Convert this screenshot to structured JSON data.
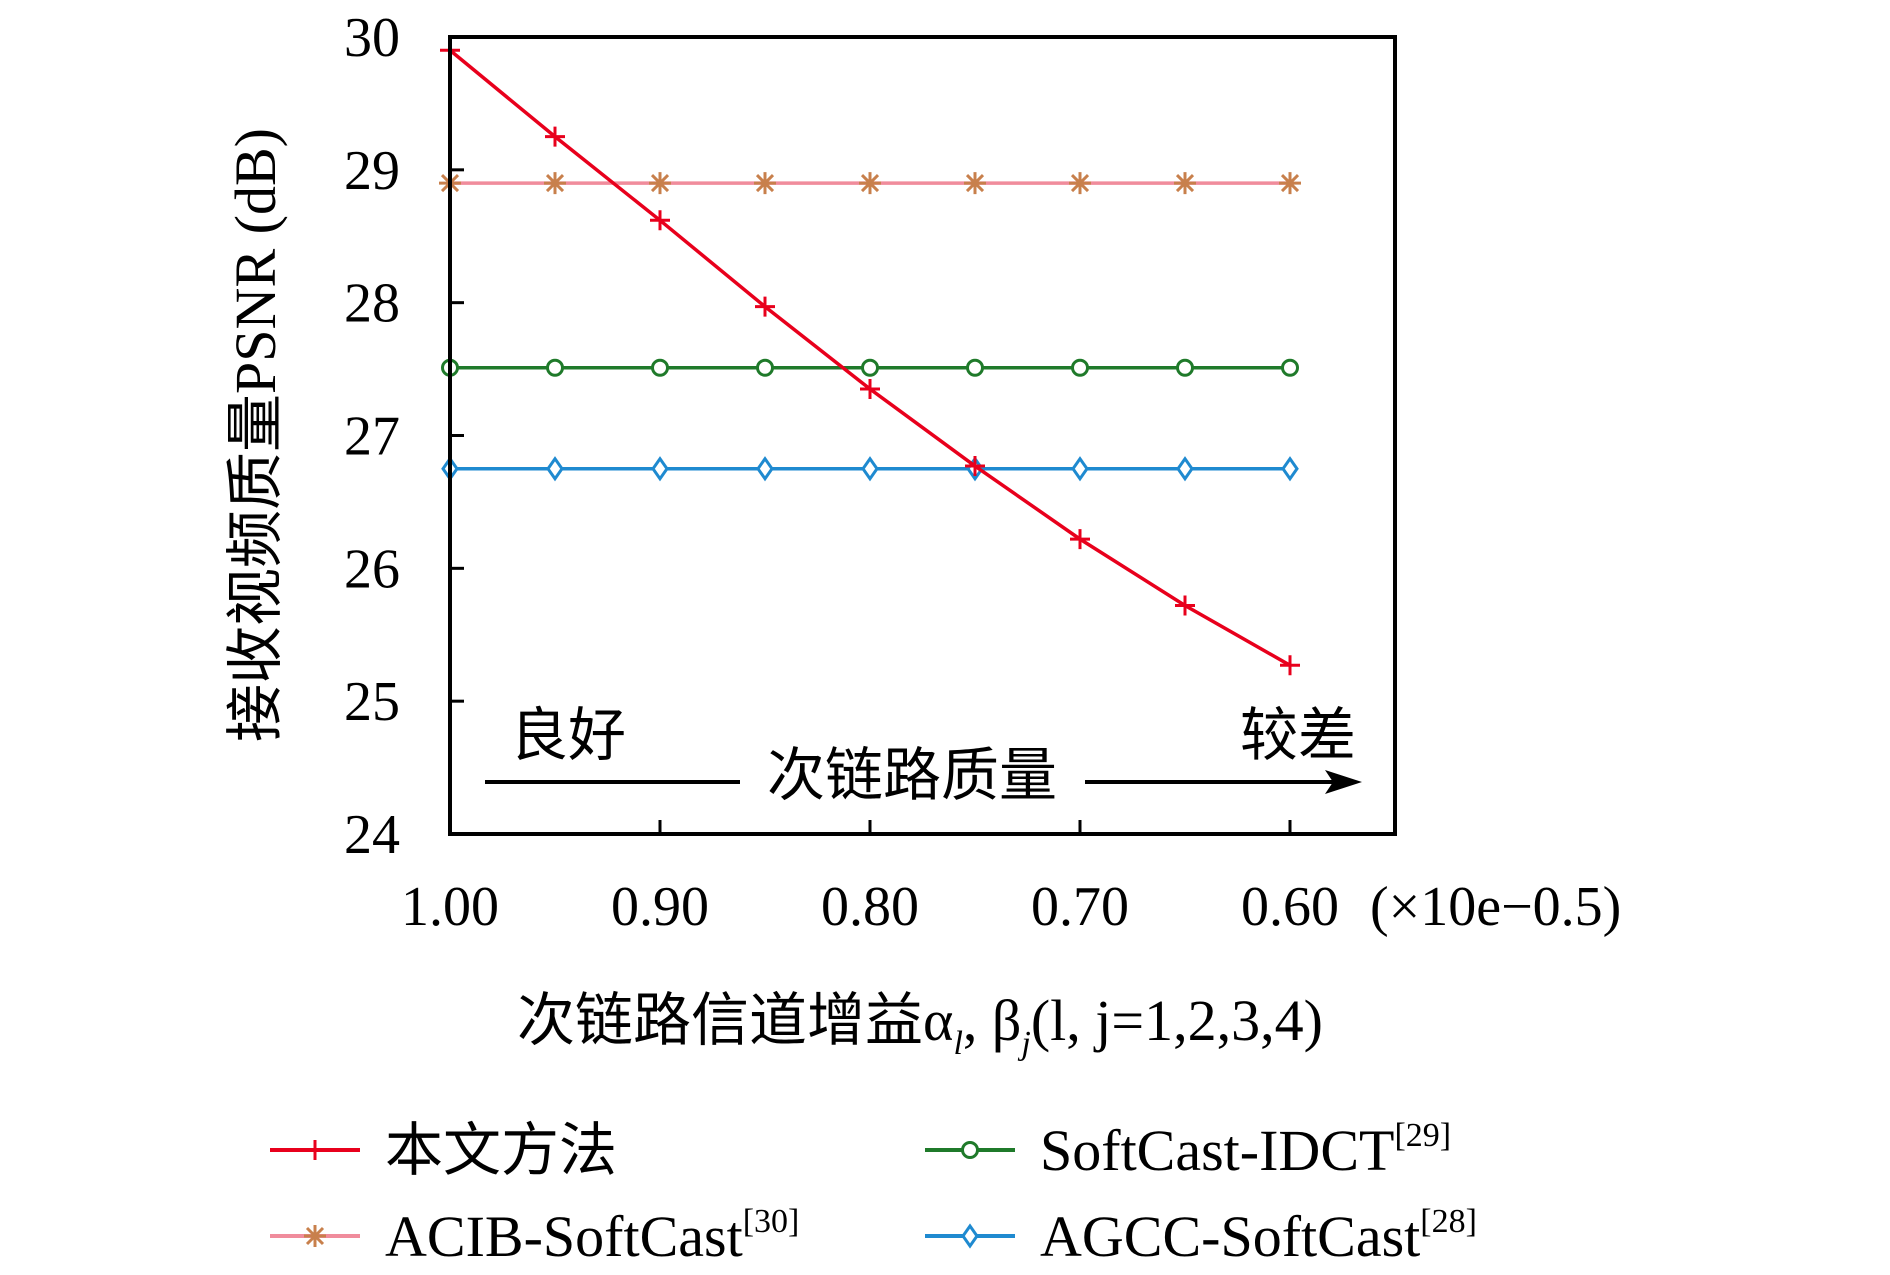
{
  "chart_data": {
    "type": "line",
    "title": "",
    "xlabel": "次链路信道增益α",
    "xlabel_sub1": "l",
    "xlabel_mid": ", β",
    "xlabel_sub2": "j",
    "xlabel_tail": "(l, j=1,2,3,4)",
    "ylabel": "接收视频质量PSNR (dB)",
    "x_multiplier": "(×10e−0.5)",
    "x": [
      1.0,
      0.95,
      0.9,
      0.85,
      0.8,
      0.75,
      0.7,
      0.65,
      0.6
    ],
    "xticks": [
      "1.00",
      "0.90",
      "0.80",
      "0.70",
      "0.60"
    ],
    "xlim": [
      1.0,
      0.55
    ],
    "ylim": [
      24,
      30
    ],
    "yticks": [
      "24",
      "25",
      "26",
      "27",
      "28",
      "29",
      "30"
    ],
    "grid": false,
    "legend_position": "bottom",
    "annotations": {
      "left": "良好",
      "right": "较差",
      "arrow": "次链路质量"
    },
    "series": [
      {
        "name": "本文方法",
        "sup": "",
        "color": "#e8001c",
        "marker": "plus",
        "values": [
          29.9,
          29.25,
          28.62,
          27.97,
          27.35,
          26.77,
          26.22,
          25.72,
          25.27
        ]
      },
      {
        "name": "ACIB-SoftCast",
        "sup": "[30]",
        "color": "#f08c9c",
        "markerColor": "#c8804c",
        "marker": "star",
        "values": [
          28.9,
          28.9,
          28.9,
          28.9,
          28.9,
          28.9,
          28.9,
          28.9,
          28.9
        ]
      },
      {
        "name": "SoftCast-IDCT",
        "sup": "[29]",
        "color": "#1f7a2a",
        "marker": "circle",
        "values": [
          27.51,
          27.51,
          27.51,
          27.51,
          27.51,
          27.51,
          27.51,
          27.51,
          27.51
        ]
      },
      {
        "name": "AGCC-SoftCast",
        "sup": "[28]",
        "color": "#1f8ad0",
        "marker": "diamond",
        "values": [
          26.75,
          26.75,
          26.75,
          26.75,
          26.75,
          26.75,
          26.75,
          26.75,
          26.75
        ]
      }
    ]
  }
}
